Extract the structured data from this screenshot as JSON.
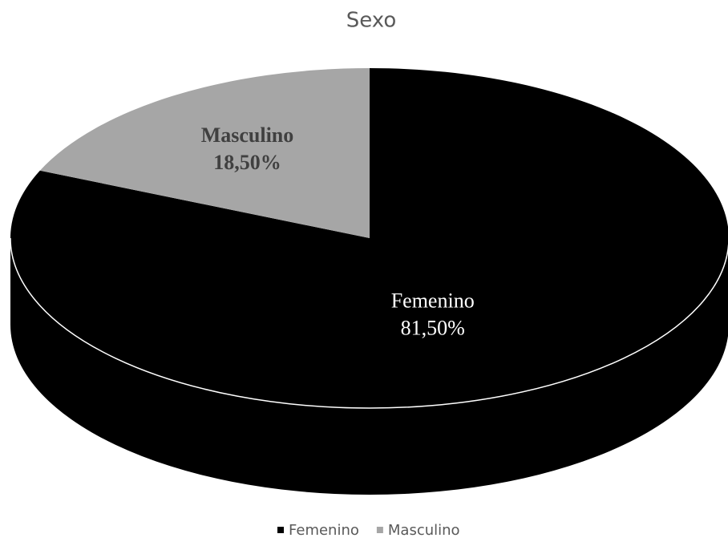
{
  "chart_data": {
    "type": "pie",
    "title": "Sexo",
    "categories": [
      "Femenino",
      "Masculino"
    ],
    "values": [
      81.5,
      18.5
    ],
    "value_labels": [
      "81,50%",
      "18,50%"
    ],
    "colors": [
      "#000000",
      "#a6a6a6"
    ],
    "legend": "bottom"
  }
}
